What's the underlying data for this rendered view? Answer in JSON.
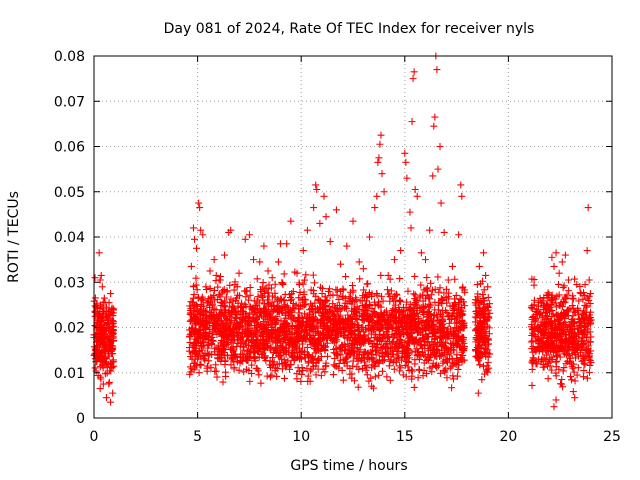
{
  "chart_data": {
    "type": "scatter",
    "title": "Day 081 of 2024, Rate Of TEC Index for receiver nyls",
    "xlabel": "GPS time / hours",
    "ylabel": "ROTI / TECUs",
    "xlim": [
      0,
      25
    ],
    "ylim": [
      0,
      0.08
    ],
    "xticks": [
      "0",
      "5",
      "10",
      "15",
      "20",
      "25"
    ],
    "yticks": [
      "0",
      "0.01",
      "0.02",
      "0.03",
      "0.04",
      "0.05",
      "0.06",
      "0.07",
      "0.08"
    ],
    "grid": true,
    "marker": "+",
    "color": "#ff0000",
    "series": [
      {
        "points": [
          [
            0.05,
            0.031
          ],
          [
            0.1,
            0.0245
          ],
          [
            0.15,
            0.0215
          ],
          [
            0.2,
            0.019
          ],
          [
            0.25,
            0.0365
          ],
          [
            0.3,
            0.0305
          ],
          [
            0.35,
            0.0315
          ],
          [
            0.4,
            0.029
          ],
          [
            0.5,
            0.0265
          ],
          [
            0.6,
            0.0245
          ],
          [
            0.7,
            0.0235
          ],
          [
            0.8,
            0.0275
          ],
          [
            0.85,
            0.024
          ],
          [
            0.3,
            0.0065
          ],
          [
            0.6,
            0.0045
          ],
          [
            0.8,
            0.0035
          ],
          [
            0.9,
            0.0055
          ],
          [
            0.45,
            0.0075
          ],
          [
            4.7,
            0.0335
          ],
          [
            4.8,
            0.042
          ],
          [
            4.85,
            0.0395
          ],
          [
            4.95,
            0.0375
          ],
          [
            5.05,
            0.0475
          ],
          [
            5.1,
            0.0465
          ],
          [
            5.15,
            0.0415
          ],
          [
            5.25,
            0.0405
          ],
          [
            5.4,
            0.029
          ],
          [
            5.6,
            0.0325
          ],
          [
            5.8,
            0.035
          ],
          [
            5.9,
            0.0315
          ],
          [
            6.1,
            0.0305
          ],
          [
            6.3,
            0.036
          ],
          [
            6.5,
            0.041
          ],
          [
            6.6,
            0.0415
          ],
          [
            6.8,
            0.0295
          ],
          [
            7.0,
            0.032
          ],
          [
            7.3,
            0.0395
          ],
          [
            7.5,
            0.0405
          ],
          [
            7.7,
            0.035
          ],
          [
            8.0,
            0.0345
          ],
          [
            8.2,
            0.038
          ],
          [
            8.4,
            0.0325
          ],
          [
            8.6,
            0.031
          ],
          [
            8.9,
            0.0345
          ],
          [
            9.0,
            0.0385
          ],
          [
            9.3,
            0.0385
          ],
          [
            9.5,
            0.0435
          ],
          [
            9.8,
            0.032
          ],
          [
            10.1,
            0.037
          ],
          [
            10.3,
            0.0415
          ],
          [
            10.6,
            0.0465
          ],
          [
            10.7,
            0.0515
          ],
          [
            10.75,
            0.0505
          ],
          [
            10.9,
            0.043
          ],
          [
            11.1,
            0.049
          ],
          [
            11.2,
            0.0445
          ],
          [
            11.4,
            0.039
          ],
          [
            11.7,
            0.046
          ],
          [
            11.9,
            0.034
          ],
          [
            12.2,
            0.038
          ],
          [
            12.5,
            0.0435
          ],
          [
            12.8,
            0.0345
          ],
          [
            13.0,
            0.033
          ],
          [
            13.3,
            0.04
          ],
          [
            13.55,
            0.0465
          ],
          [
            13.65,
            0.049
          ],
          [
            13.7,
            0.0565
          ],
          [
            13.75,
            0.0575
          ],
          [
            13.8,
            0.0605
          ],
          [
            13.85,
            0.0625
          ],
          [
            13.9,
            0.054
          ],
          [
            14.0,
            0.05
          ],
          [
            14.2,
            0.0315
          ],
          [
            14.5,
            0.035
          ],
          [
            14.8,
            0.037
          ],
          [
            15.0,
            0.0585
          ],
          [
            15.05,
            0.0565
          ],
          [
            15.1,
            0.053
          ],
          [
            15.25,
            0.0455
          ],
          [
            15.3,
            0.042
          ],
          [
            15.35,
            0.0655
          ],
          [
            15.4,
            0.075
          ],
          [
            15.45,
            0.0765
          ],
          [
            15.5,
            0.0505
          ],
          [
            15.6,
            0.049
          ],
          [
            15.8,
            0.0365
          ],
          [
            16.0,
            0.035
          ],
          [
            16.2,
            0.0415
          ],
          [
            16.35,
            0.0535
          ],
          [
            16.4,
            0.0645
          ],
          [
            16.45,
            0.0665
          ],
          [
            16.5,
            0.08
          ],
          [
            16.55,
            0.077
          ],
          [
            16.6,
            0.055
          ],
          [
            16.7,
            0.06
          ],
          [
            16.75,
            0.0475
          ],
          [
            16.9,
            0.041
          ],
          [
            17.1,
            0.0305
          ],
          [
            17.3,
            0.0335
          ],
          [
            17.6,
            0.0405
          ],
          [
            17.7,
            0.0515
          ],
          [
            17.75,
            0.049
          ],
          [
            18.5,
            0.0295
          ],
          [
            18.6,
            0.0335
          ],
          [
            18.8,
            0.0365
          ],
          [
            18.9,
            0.0315
          ],
          [
            19.0,
            0.029
          ],
          [
            18.55,
            0.0055
          ],
          [
            21.3,
            0.0215
          ],
          [
            21.5,
            0.023
          ],
          [
            21.7,
            0.0245
          ],
          [
            21.9,
            0.0265
          ],
          [
            22.1,
            0.0355
          ],
          [
            22.2,
            0.0335
          ],
          [
            22.3,
            0.0365
          ],
          [
            22.45,
            0.032
          ],
          [
            22.6,
            0.0345
          ],
          [
            22.75,
            0.036
          ],
          [
            22.9,
            0.0305
          ],
          [
            23.1,
            0.027
          ],
          [
            23.3,
            0.0295
          ],
          [
            23.5,
            0.0275
          ],
          [
            23.7,
            0.0295
          ],
          [
            23.8,
            0.037
          ],
          [
            23.85,
            0.0465
          ],
          [
            23.9,
            0.0305
          ],
          [
            22.2,
            0.0025
          ],
          [
            22.3,
            0.004
          ],
          [
            23.2,
            0.0045
          ]
        ]
      }
    ]
  }
}
